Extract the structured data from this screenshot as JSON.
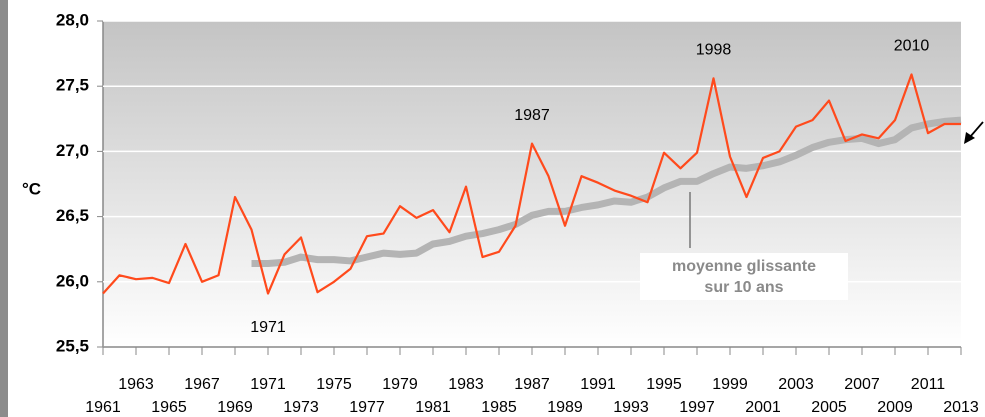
{
  "chart_data": {
    "type": "line",
    "y_label": "°C",
    "x": [
      1961,
      1962,
      1963,
      1964,
      1965,
      1966,
      1967,
      1968,
      1969,
      1970,
      1971,
      1972,
      1973,
      1974,
      1975,
      1976,
      1977,
      1978,
      1979,
      1980,
      1981,
      1982,
      1983,
      1984,
      1985,
      1986,
      1987,
      1988,
      1989,
      1990,
      1991,
      1992,
      1993,
      1994,
      1995,
      1996,
      1997,
      1998,
      1999,
      2000,
      2001,
      2002,
      2003,
      2004,
      2005,
      2006,
      2007,
      2008,
      2009,
      2010,
      2011,
      2012,
      2013
    ],
    "series": [
      {
        "color": "#ff4a1c",
        "values": [
          25.91,
          26.05,
          26.02,
          26.03,
          25.99,
          26.29,
          26.0,
          26.05,
          26.65,
          26.4,
          25.91,
          26.21,
          26.34,
          25.92,
          26.0,
          26.1,
          26.35,
          26.37,
          26.58,
          26.49,
          26.55,
          26.38,
          26.73,
          26.19,
          26.23,
          26.43,
          27.06,
          26.81,
          26.43,
          26.81,
          26.76,
          26.7,
          26.66,
          26.61,
          26.99,
          26.87,
          26.99,
          27.56,
          26.96,
          26.65,
          26.95,
          27.0,
          27.19,
          27.24,
          27.39,
          27.08,
          27.13,
          27.1,
          27.24,
          27.59,
          27.14,
          27.21,
          27.21
        ]
      },
      {
        "color": "#b4b4b4",
        "values": [
          null,
          null,
          null,
          null,
          null,
          null,
          null,
          null,
          null,
          26.14,
          26.14,
          26.15,
          26.19,
          26.17,
          26.17,
          26.16,
          26.19,
          26.22,
          26.21,
          26.22,
          26.29,
          26.31,
          26.35,
          26.37,
          26.4,
          26.44,
          26.51,
          26.54,
          26.54,
          26.57,
          26.59,
          26.62,
          26.61,
          26.65,
          26.72,
          26.77,
          26.77,
          26.83,
          26.88,
          26.87,
          26.89,
          26.92,
          26.97,
          27.03,
          27.07,
          27.09,
          27.1,
          27.06,
          27.09,
          27.18,
          27.21,
          27.23,
          27.24
        ]
      }
    ],
    "xlim": [
      1961,
      2013
    ],
    "xticks": [
      1961,
      1963,
      1965,
      1967,
      1969,
      1971,
      1973,
      1975,
      1977,
      1979,
      1981,
      1983,
      1985,
      1987,
      1989,
      1991,
      1993,
      1995,
      1997,
      1999,
      2001,
      2003,
      2005,
      2007,
      2009,
      2011,
      2013
    ],
    "ylim": [
      25.5,
      28.0
    ],
    "yticks": [
      {
        "value": 25.5,
        "label": "25,5"
      },
      {
        "value": 26.0,
        "label": "26,0"
      },
      {
        "value": 26.5,
        "label": "26,5"
      },
      {
        "value": 27.0,
        "label": "27,0"
      },
      {
        "value": 27.5,
        "label": "27,5"
      },
      {
        "value": 28.0,
        "label": "28,0"
      }
    ],
    "grid": true,
    "annotations": [
      {
        "text": "1971",
        "x": 1971
      },
      {
        "text": "1987",
        "x": 1987
      },
      {
        "text": "1998",
        "x": 1998
      },
      {
        "text": "2010",
        "x": 2010
      }
    ],
    "moving_average_note": [
      "moyenne glissante",
      "sur 10 ans"
    ]
  }
}
